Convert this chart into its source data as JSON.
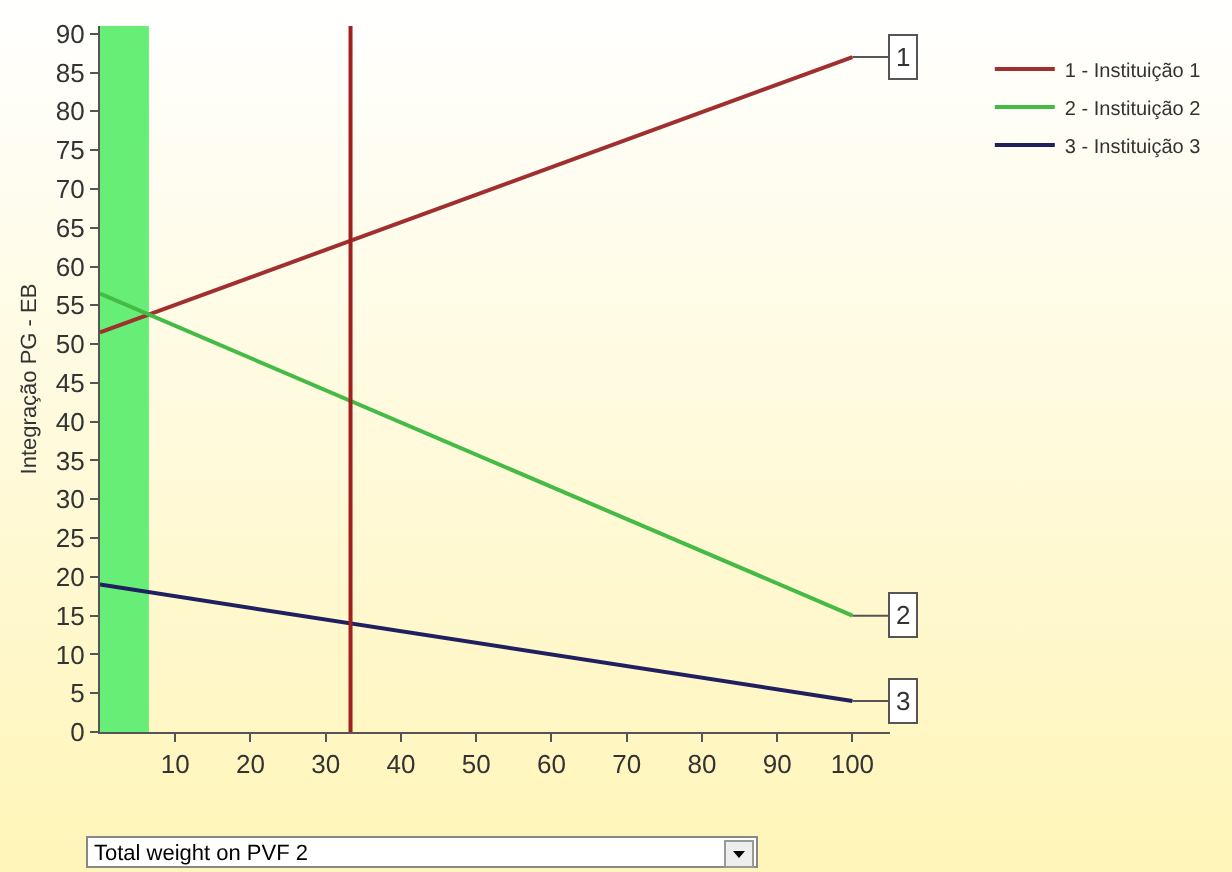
{
  "chart_data": {
    "type": "line",
    "ylabel": "Integração PG - EB",
    "x": [
      0,
      100
    ],
    "series": [
      {
        "name": "1 - Instituição 1",
        "color": "#a03030",
        "values": [
          51.5,
          87
        ]
      },
      {
        "name": "2 - Instituição 2",
        "color": "#44bb44",
        "values": [
          56.5,
          15
        ]
      },
      {
        "name": "3 - Instituição 3",
        "color": "#202060",
        "values": [
          19,
          4
        ]
      }
    ],
    "xlim": [
      0,
      105
    ],
    "xticks": [
      10,
      20,
      30,
      40,
      50,
      60,
      70,
      80,
      90,
      100
    ],
    "ylim": [
      0,
      91
    ],
    "yticks": [
      0,
      5,
      10,
      15,
      20,
      25,
      30,
      35,
      40,
      45,
      50,
      55,
      60,
      65,
      70,
      75,
      80,
      85,
      90
    ],
    "ref_lines": [
      {
        "axis": "x",
        "value": 33.3,
        "color": "#a02020"
      }
    ],
    "bands": [
      {
        "axis": "x",
        "from": 0,
        "to": 6.5,
        "color": "#66ee77"
      }
    ],
    "annotations": [
      {
        "text": "1",
        "y": 87
      },
      {
        "text": "2",
        "y": 15
      },
      {
        "text": "3",
        "y": 4
      },
      "Total weight on PVF 2"
    ],
    "grid": false,
    "legend": "top right",
    "marker": "none",
    "line_style": "solid"
  }
}
